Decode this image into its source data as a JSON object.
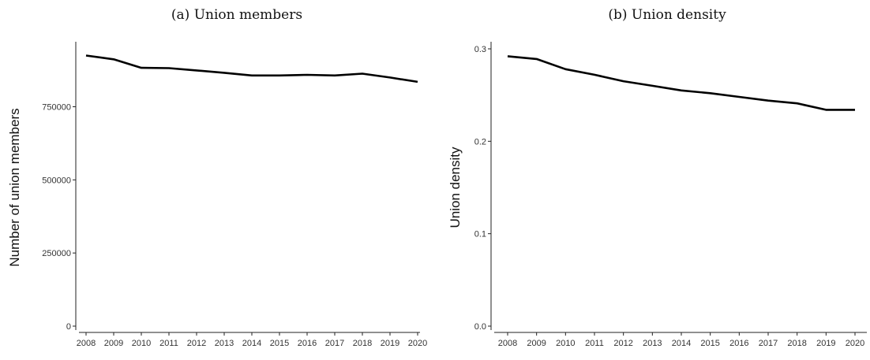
{
  "chart_data": [
    {
      "type": "line",
      "title": "(a) Union members",
      "xlabel": "",
      "ylabel": "Number of union members",
      "x": [
        "2008",
        "2009",
        "2010",
        "2011",
        "2012",
        "2013",
        "2014",
        "2015",
        "2016",
        "2017",
        "2018",
        "2019",
        "2020"
      ],
      "series": [
        {
          "values": [
            925000,
            912000,
            883000,
            882000,
            874000,
            866000,
            857000,
            857000,
            859000,
            857000,
            863000,
            850000,
            835000
          ]
        }
      ],
      "ylim": [
        0,
        925000
      ],
      "yticks": [
        0,
        250000,
        500000,
        750000
      ],
      "ytick_labels": [
        "0",
        "250000",
        "500000",
        "750000"
      ],
      "grid": false,
      "line_color": "#000000"
    },
    {
      "type": "line",
      "title": "(b) Union density",
      "xlabel": "",
      "ylabel": "Union density",
      "x": [
        "2008",
        "2009",
        "2010",
        "2011",
        "2012",
        "2013",
        "2014",
        "2015",
        "2016",
        "2017",
        "2018",
        "2019",
        "2020"
      ],
      "series": [
        {
          "values": [
            0.292,
            0.289,
            0.278,
            0.272,
            0.265,
            0.26,
            0.255,
            0.252,
            0.248,
            0.244,
            0.241,
            0.234,
            0.234
          ]
        }
      ],
      "ylim": [
        0,
        0.3
      ],
      "yticks": [
        0,
        0.1,
        0.2,
        0.3
      ],
      "ytick_labels": [
        "0.0",
        "0.1",
        "0.2",
        "0.3"
      ],
      "grid": false,
      "line_color": "#000000"
    }
  ]
}
